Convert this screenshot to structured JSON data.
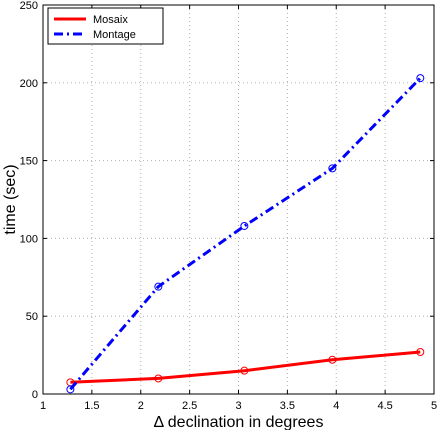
{
  "chart_data": {
    "type": "line",
    "title": "",
    "xlabel": "Δ declination in degrees",
    "ylabel": "time (sec)",
    "xlim": [
      1,
      5
    ],
    "ylim": [
      0,
      250
    ],
    "xticks": [
      "1",
      "1.5",
      "2",
      "2.5",
      "3",
      "3.5",
      "4",
      "4.5",
      "5"
    ],
    "yticks": [
      "0",
      "50",
      "100",
      "150",
      "200",
      "250"
    ],
    "grid": true,
    "legend_position": "top-left",
    "series": [
      {
        "name": "Mosaix",
        "color": "#ff0000",
        "style": "solid",
        "marker": "circle",
        "x": [
          1.28,
          2.18,
          3.06,
          3.96,
          4.86
        ],
        "y": [
          7.5,
          10,
          15,
          22,
          27
        ]
      },
      {
        "name": "Montage",
        "color": "#0000ff",
        "style": "dash-dot",
        "marker": "circle",
        "x": [
          1.28,
          2.18,
          3.06,
          3.96,
          4.86
        ],
        "y": [
          3,
          69,
          108,
          145,
          203
        ]
      }
    ]
  }
}
